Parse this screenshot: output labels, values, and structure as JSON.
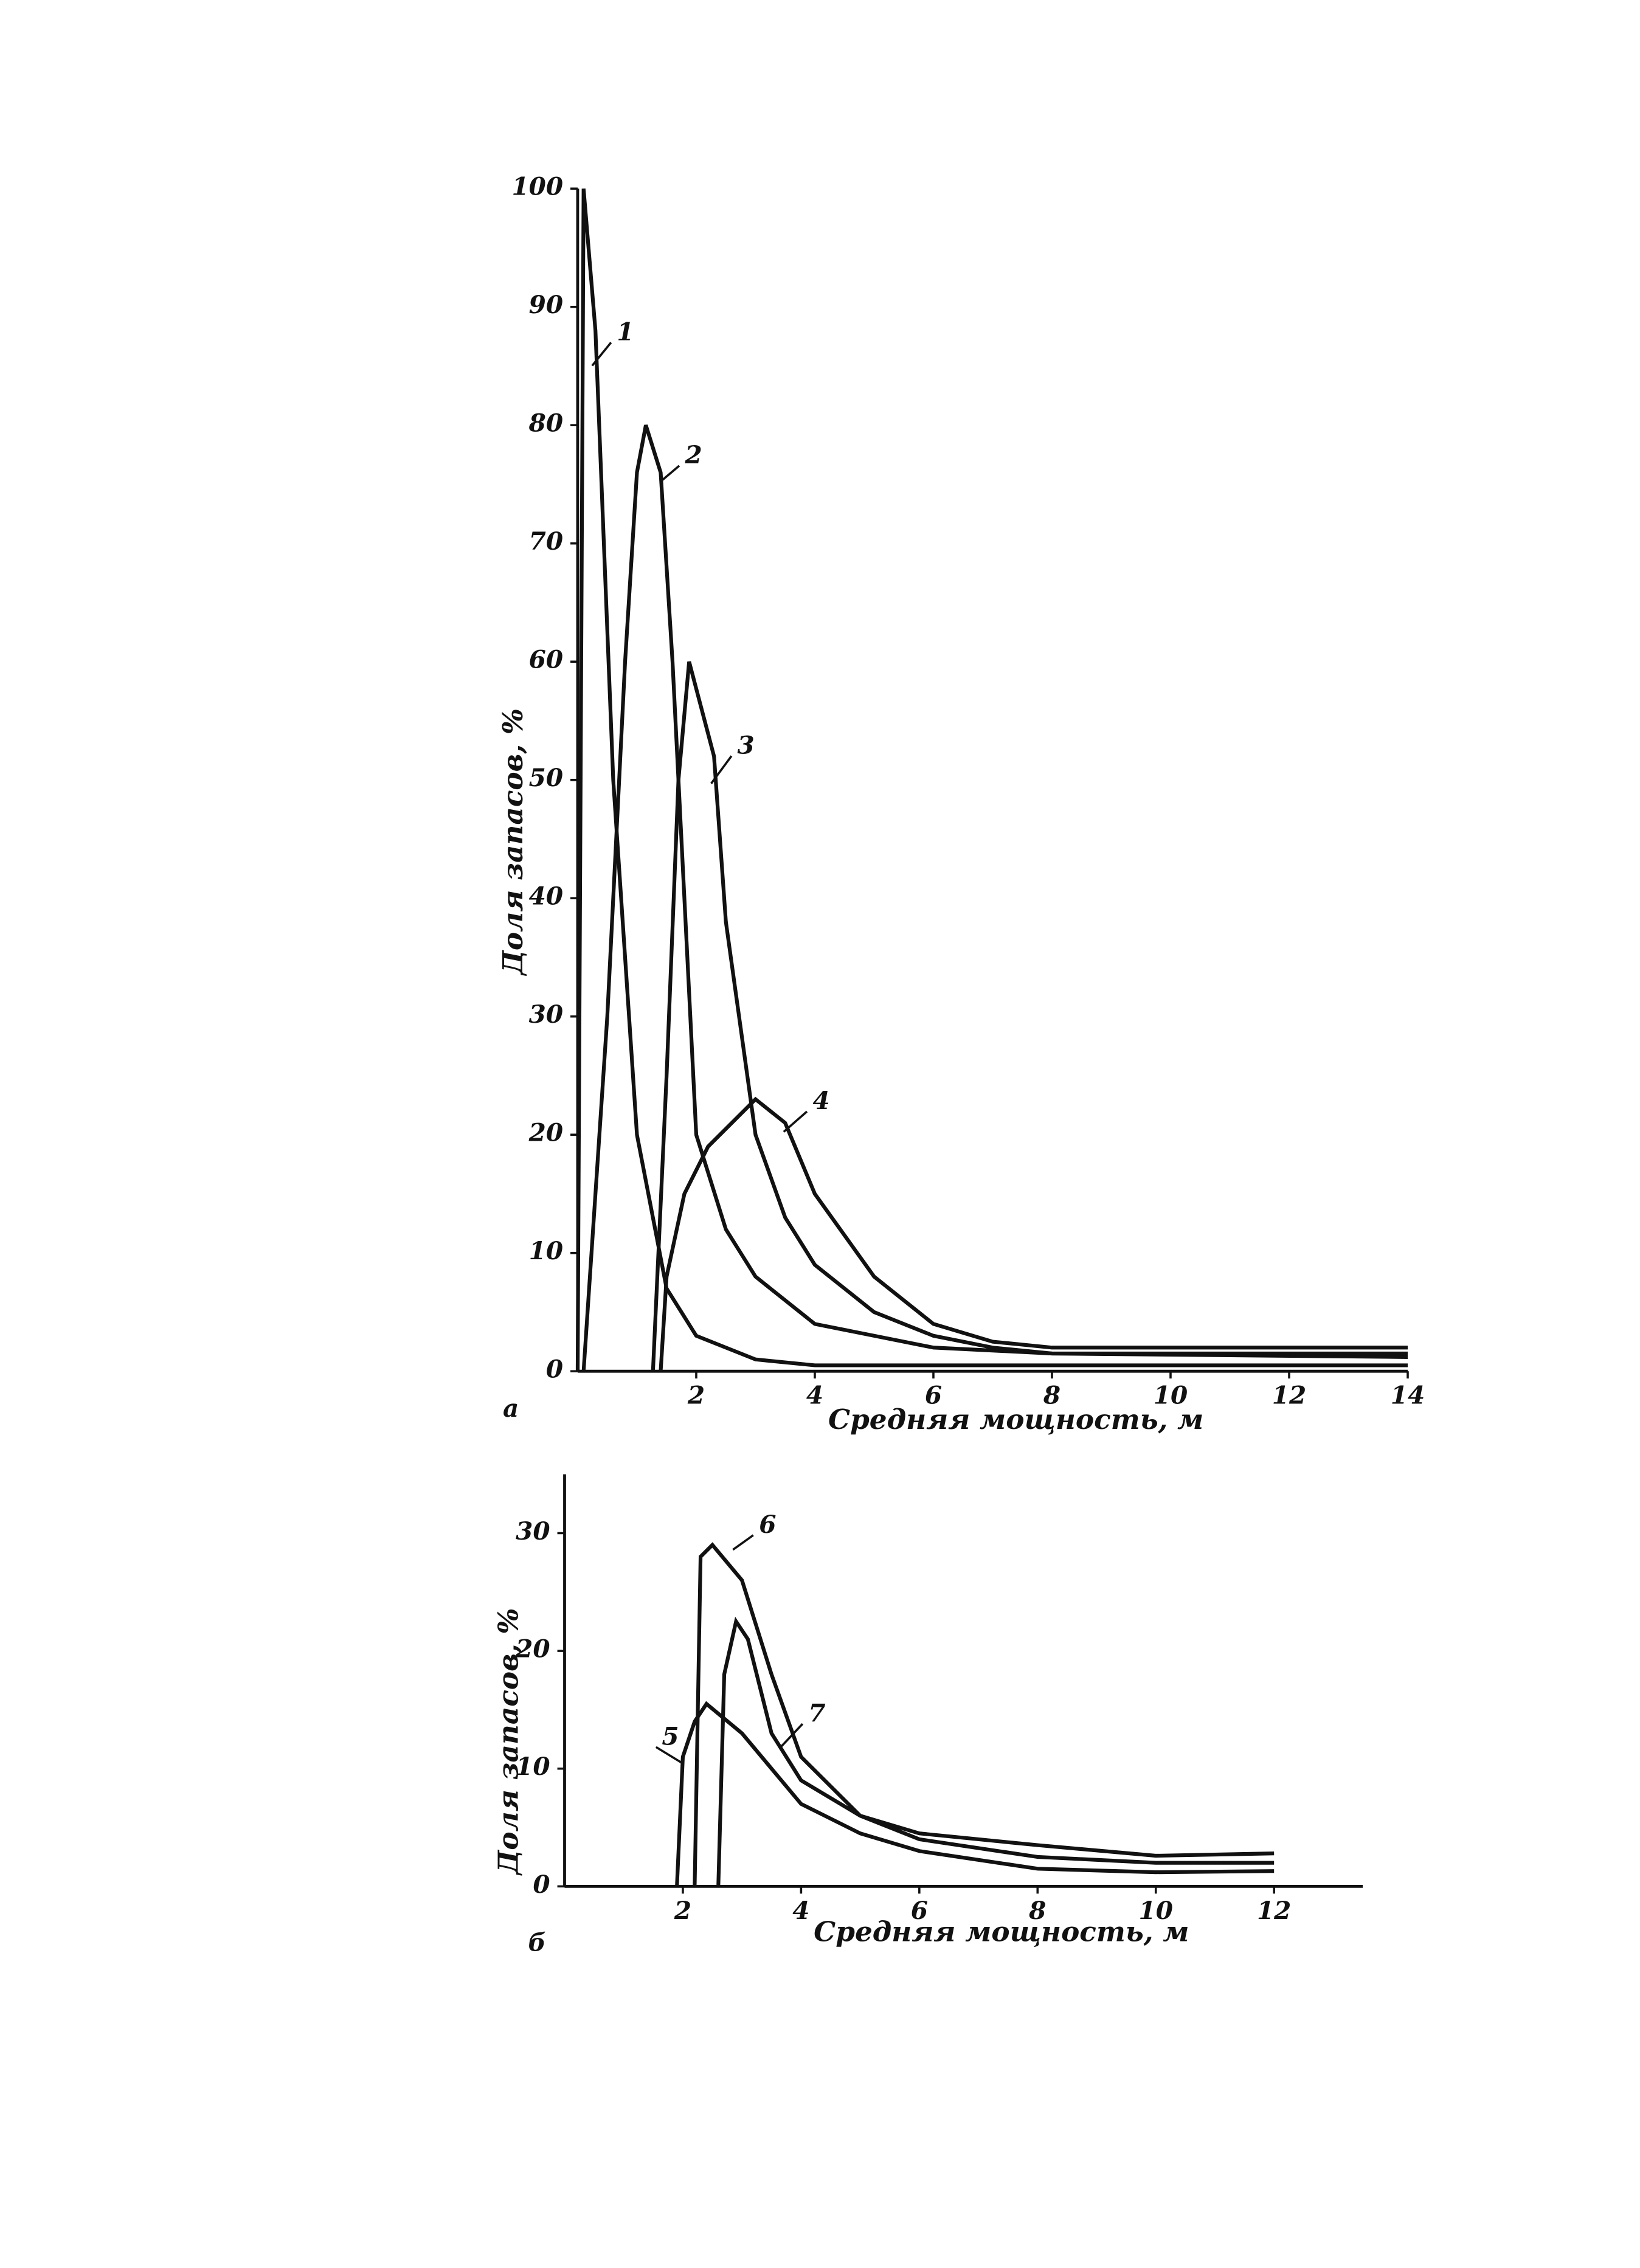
{
  "chart_data": [
    {
      "type": "line",
      "panel_label": "а",
      "x_label": "Средняя мощность, м",
      "y_label": "Доля запасов, %",
      "xlim": [
        0,
        14
      ],
      "ylim": [
        0,
        100
      ],
      "xticks": [
        2,
        4,
        6,
        8,
        10,
        12,
        14
      ],
      "yticks": [
        0,
        10,
        20,
        30,
        40,
        50,
        60,
        70,
        80,
        90,
        100
      ],
      "color": "#111111",
      "series": [
        {
          "name": "1",
          "x": [
            0,
            0.1,
            0.3,
            0.6,
            1,
            1.5,
            2,
            3,
            4,
            14
          ],
          "values": [
            0,
            100,
            88,
            50,
            20,
            7,
            3,
            1,
            0.5,
            0.5
          ]
        },
        {
          "name": "2",
          "x": [
            0.1,
            0.5,
            0.8,
            1,
            1.15,
            1.4,
            1.6,
            2,
            2.5,
            3,
            4,
            6,
            8,
            14
          ],
          "values": [
            0,
            30,
            60,
            76,
            80,
            76,
            60,
            20,
            12,
            8,
            4,
            2,
            1.5,
            1.2
          ]
        },
        {
          "name": "3",
          "x": [
            1.27,
            1.5,
            1.7,
            1.88,
            2.3,
            2.5,
            3,
            3.5,
            4,
            5,
            6,
            7,
            8,
            14
          ],
          "values": [
            0,
            25,
            50,
            60,
            52,
            38,
            20,
            13,
            9,
            5,
            3,
            2,
            1.5,
            1.5
          ]
        },
        {
          "name": "4",
          "x": [
            1.4,
            1.5,
            1.8,
            2.2,
            3,
            3.5,
            4,
            5,
            6,
            7,
            8,
            14
          ],
          "values": [
            0,
            8,
            15,
            19,
            23,
            21,
            15,
            8,
            4,
            2.5,
            2,
            2
          ]
        }
      ]
    },
    {
      "type": "line",
      "panel_label": "б",
      "x_label": "Средняя мощность, м",
      "y_label": "Доля запасов, %",
      "xlim": [
        0,
        13.5
      ],
      "ylim": [
        0,
        35
      ],
      "xticks": [
        2,
        4,
        6,
        8,
        10,
        12
      ],
      "yticks": [
        0,
        10,
        20,
        30
      ],
      "color": "#111111",
      "series": [
        {
          "name": "5",
          "x": [
            1.9,
            2.0,
            2.2,
            2.4,
            3,
            4,
            5,
            6,
            8,
            10,
            12
          ],
          "values": [
            0,
            11,
            14,
            15.5,
            13,
            7,
            4.5,
            3,
            1.5,
            1.2,
            1.3
          ]
        },
        {
          "name": "6",
          "x": [
            2.2,
            2.3,
            2.5,
            3,
            3.5,
            4,
            5,
            6,
            8,
            10,
            12
          ],
          "values": [
            0,
            28,
            29,
            26,
            18,
            11,
            6,
            4.5,
            3.5,
            2.6,
            2.8
          ]
        },
        {
          "name": "7",
          "x": [
            2.6,
            2.7,
            2.9,
            3.1,
            3.5,
            4,
            5,
            6,
            8,
            10,
            12
          ],
          "values": [
            0,
            18,
            22.5,
            21,
            13,
            9,
            6,
            4,
            2.5,
            2,
            2
          ]
        }
      ]
    }
  ]
}
